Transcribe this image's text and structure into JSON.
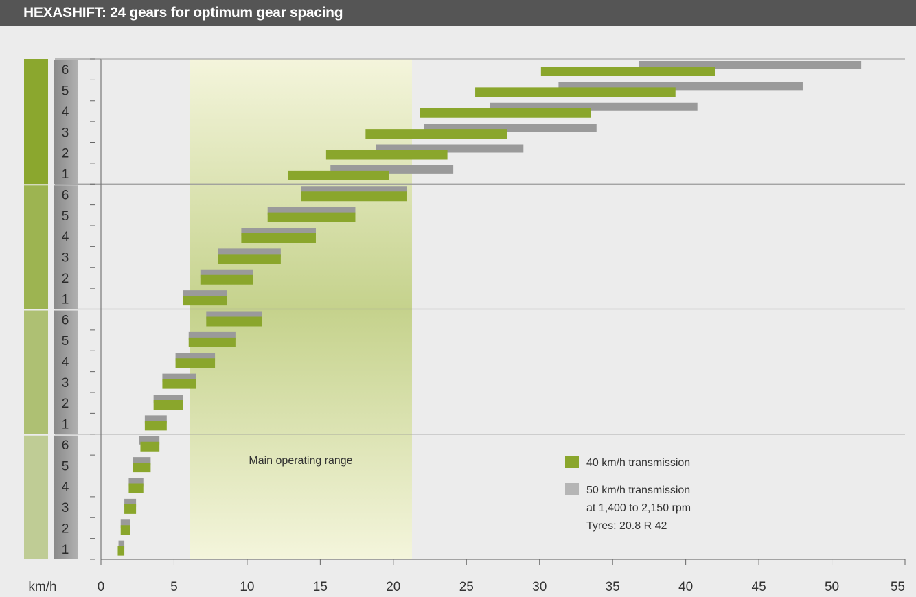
{
  "colors": {
    "title_bar": "#555555",
    "background": "#ececec",
    "green_bar": "#8aa62c",
    "gray_bar": "#9a9a9a",
    "gear_column": "#8a8a8a",
    "range_light": "#f4f5dc",
    "range_dark": "#c7d48f"
  },
  "chart_data": {
    "type": "bar",
    "subtype": "horizontal-range",
    "title": "HEXASHIFT: 24 gears for optimum gear spacing",
    "xlabel": "km/h",
    "xlim": [
      0,
      55
    ],
    "x_ticks": [
      "0",
      "5",
      "10",
      "15",
      "20",
      "25",
      "30",
      "35",
      "40",
      "45",
      "50",
      "55"
    ],
    "gear_labels": [
      "1",
      "2",
      "3",
      "4",
      "5",
      "6"
    ],
    "range_groups": 4,
    "main_operating_range": {
      "label": "Main operating range",
      "from": 6.1,
      "to": 21.3
    },
    "series": [
      {
        "name": "40 km/h transmission",
        "color": "#8aa62c",
        "ranges": [
          [
            1.15,
            1.6
          ],
          [
            1.35,
            2.0
          ],
          [
            1.6,
            2.4
          ],
          [
            1.9,
            2.9
          ],
          [
            2.2,
            3.4
          ],
          [
            2.7,
            4.0
          ],
          [
            3.0,
            4.5
          ],
          [
            3.6,
            5.6
          ],
          [
            4.2,
            6.5
          ],
          [
            5.1,
            7.8
          ],
          [
            6.0,
            9.2
          ],
          [
            7.2,
            11.0
          ],
          [
            5.6,
            8.6
          ],
          [
            6.8,
            10.4
          ],
          [
            8.0,
            12.3
          ],
          [
            9.6,
            14.7
          ],
          [
            11.4,
            17.4
          ],
          [
            13.7,
            20.9
          ],
          [
            12.8,
            19.7
          ],
          [
            15.4,
            23.7
          ],
          [
            18.1,
            27.8
          ],
          [
            21.8,
            33.5
          ],
          [
            25.6,
            39.3
          ],
          [
            30.1,
            42.0
          ]
        ]
      },
      {
        "name": "50 km/h transmission",
        "note_lines": [
          "at 1,400 to 2,150 rpm",
          "Tyres: 20.8 R 42"
        ],
        "color": "#9a9a9a",
        "ranges": [
          [
            1.2,
            1.6
          ],
          [
            1.35,
            2.0
          ],
          [
            1.6,
            2.4
          ],
          [
            1.9,
            2.9
          ],
          [
            2.2,
            3.4
          ],
          [
            2.6,
            4.0
          ],
          [
            3.0,
            4.5
          ],
          [
            3.6,
            5.6
          ],
          [
            4.2,
            6.5
          ],
          [
            5.1,
            7.8
          ],
          [
            6.0,
            9.2
          ],
          [
            7.2,
            11.0
          ],
          [
            5.6,
            8.6
          ],
          [
            6.8,
            10.4
          ],
          [
            8.0,
            12.3
          ],
          [
            9.6,
            14.7
          ],
          [
            11.4,
            17.4
          ],
          [
            13.7,
            20.9
          ],
          [
            15.7,
            24.1
          ],
          [
            18.8,
            28.9
          ],
          [
            22.1,
            33.9
          ],
          [
            26.6,
            40.8
          ],
          [
            31.3,
            48.0
          ],
          [
            36.8,
            52.0
          ]
        ]
      }
    ]
  }
}
